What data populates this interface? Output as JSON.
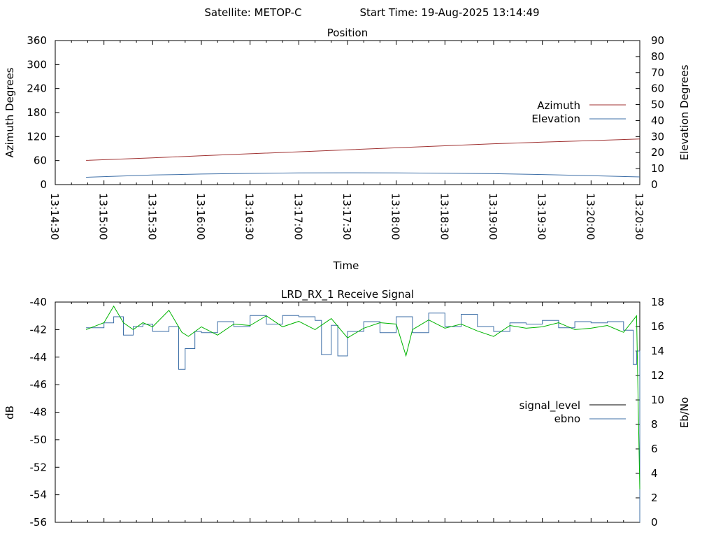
{
  "header": {
    "satellite": "Satellite: METOP-C",
    "start_time": "Start Time: 19-Aug-2025 13:14:49"
  },
  "chart_data": [
    {
      "type": "line",
      "title": "Position",
      "xlabel": "Time",
      "ylabel": "Azimuth Degrees",
      "y2label": "Elevation Degrees",
      "x_ticks": [
        "13:14:30",
        "13:15:00",
        "13:15:30",
        "13:16:00",
        "13:16:30",
        "13:17:00",
        "13:17:30",
        "13:18:00",
        "13:18:30",
        "13:19:00",
        "13:19:30",
        "13:20:00",
        "13:20:30"
      ],
      "xlim": [
        "13:14:30",
        "13:20:30"
      ],
      "ylim": [
        0,
        360
      ],
      "y_ticks": [
        0,
        60,
        120,
        180,
        240,
        300,
        360
      ],
      "y2lim": [
        0,
        90
      ],
      "y2_ticks": [
        0,
        10,
        20,
        30,
        40,
        50,
        60,
        70,
        80,
        90
      ],
      "legend_position": "right",
      "series": [
        {
          "name": "Azimuth",
          "axis": "y",
          "color": "#a03232",
          "x": [
            "13:14:49",
            "13:15:30",
            "13:16:00",
            "13:16:30",
            "13:17:00",
            "13:17:30",
            "13:18:00",
            "13:18:30",
            "13:19:00",
            "13:19:30",
            "13:20:00",
            "13:20:30"
          ],
          "values": [
            60.5,
            67,
            72,
            77,
            82,
            87,
            92,
            97,
            102,
            106,
            110,
            114
          ]
        },
        {
          "name": "Elevation",
          "axis": "y2",
          "color": "#3e6fa7",
          "x": [
            "13:14:49",
            "13:15:00",
            "13:15:30",
            "13:16:00",
            "13:16:30",
            "13:17:00",
            "13:17:30",
            "13:18:00",
            "13:18:30",
            "13:19:00",
            "13:19:30",
            "13:20:00",
            "13:20:30"
          ],
          "values": [
            4.6,
            5.0,
            6.0,
            6.6,
            7.0,
            7.3,
            7.4,
            7.3,
            7.1,
            6.8,
            6.3,
            5.6,
            4.8
          ]
        }
      ]
    },
    {
      "type": "line",
      "title": "LRD_RX_1 Receive Signal",
      "ylabel": "dB",
      "y2label": "Eb/No",
      "ylim": [
        -56,
        -40
      ],
      "y_ticks": [
        -56,
        -54,
        -52,
        -50,
        -48,
        -46,
        -44,
        -42,
        -40
      ],
      "y2lim": [
        0,
        18
      ],
      "y2_ticks": [
        0,
        2,
        4,
        6,
        8,
        10,
        12,
        14,
        16,
        18
      ],
      "legend_position": "right",
      "series": [
        {
          "name": "signal_level",
          "axis": "y",
          "color": "#00b400",
          "x": [
            "13:14:49",
            "13:15:00",
            "13:15:06",
            "13:15:12",
            "13:15:18",
            "13:15:24",
            "13:15:30",
            "13:15:40",
            "13:15:48",
            "13:15:52",
            "13:16:00",
            "13:16:10",
            "13:16:20",
            "13:16:30",
            "13:16:40",
            "13:16:50",
            "13:17:00",
            "13:17:10",
            "13:17:20",
            "13:17:30",
            "13:17:40",
            "13:17:50",
            "13:18:00",
            "13:18:06",
            "13:18:10",
            "13:18:20",
            "13:18:30",
            "13:18:40",
            "13:18:50",
            "13:19:00",
            "13:19:10",
            "13:19:20",
            "13:19:30",
            "13:19:40",
            "13:19:50",
            "13:20:00",
            "13:20:10",
            "13:20:20",
            "13:20:28",
            "13:20:30"
          ],
          "values": [
            -42,
            -41.5,
            -40.3,
            -41.5,
            -42,
            -41.5,
            -41.8,
            -40.6,
            -42.2,
            -42.5,
            -41.8,
            -42.4,
            -41.6,
            -41.7,
            -41.0,
            -41.8,
            -41.4,
            -42.0,
            -41.2,
            -42.6,
            -41.9,
            -41.5,
            -41.6,
            -43.9,
            -42.0,
            -41.3,
            -41.9,
            -41.6,
            -42.1,
            -42.5,
            -41.7,
            -41.9,
            -41.8,
            -41.5,
            -42.0,
            -41.9,
            -41.7,
            -42.2,
            -41.0,
            -53.6
          ]
        },
        {
          "name": "ebno",
          "axis": "y2",
          "color": "#3e6fa7",
          "x": [
            "13:14:49",
            "13:15:00",
            "13:15:06",
            "13:15:12",
            "13:15:18",
            "13:15:24",
            "13:15:30",
            "13:15:40",
            "13:15:46",
            "13:15:50",
            "13:15:56",
            "13:16:00",
            "13:16:10",
            "13:16:20",
            "13:16:30",
            "13:16:40",
            "13:16:50",
            "13:17:00",
            "13:17:10",
            "13:17:14",
            "13:17:20",
            "13:17:24",
            "13:17:30",
            "13:17:40",
            "13:17:50",
            "13:18:00",
            "13:18:10",
            "13:18:20",
            "13:18:30",
            "13:18:40",
            "13:18:50",
            "13:19:00",
            "13:19:10",
            "13:19:20",
            "13:19:30",
            "13:19:40",
            "13:19:50",
            "13:20:00",
            "13:20:10",
            "13:20:20",
            "13:20:26",
            "13:20:28",
            "13:20:30"
          ],
          "values": [
            15.9,
            16.3,
            16.8,
            15.3,
            16.0,
            16.2,
            15.6,
            16.0,
            12.5,
            14.2,
            15.6,
            15.5,
            16.4,
            16.0,
            16.9,
            16.2,
            16.9,
            16.8,
            16.5,
            13.7,
            16.1,
            13.6,
            15.6,
            16.4,
            15.5,
            16.8,
            15.5,
            17.1,
            16.0,
            17.0,
            16.0,
            15.6,
            16.3,
            16.2,
            16.5,
            15.9,
            16.4,
            16.3,
            16.4,
            15.7,
            12.9,
            14.0,
            0.0
          ]
        }
      ]
    }
  ]
}
